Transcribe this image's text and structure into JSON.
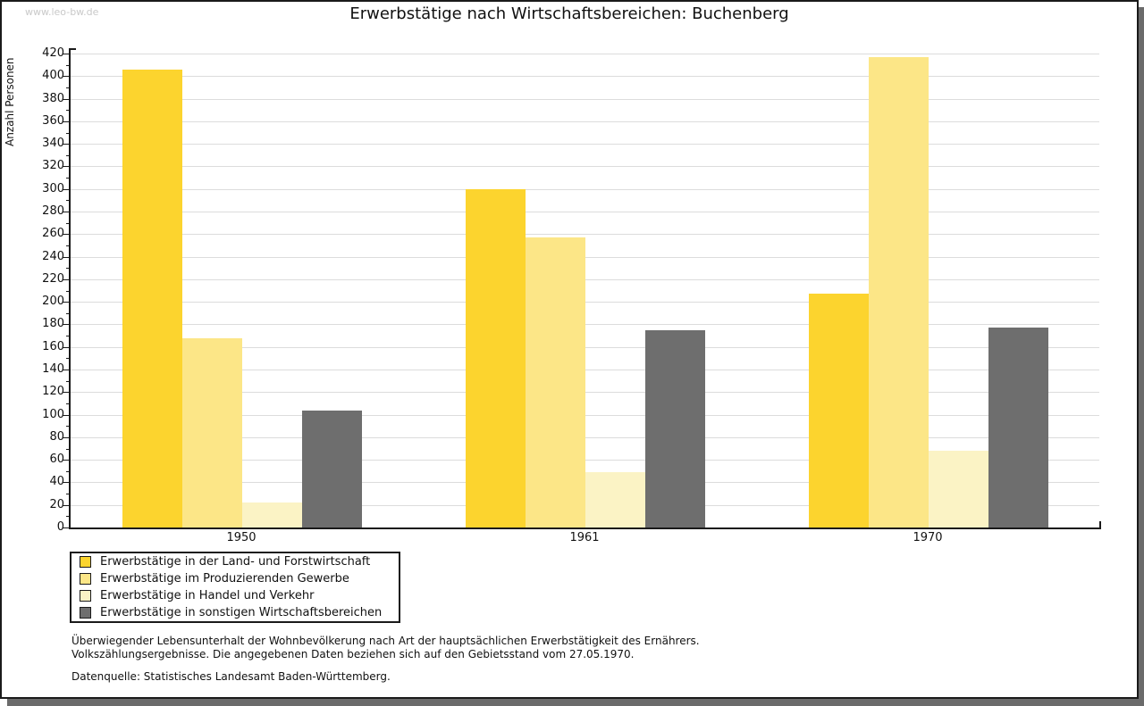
{
  "watermark": "www.leo-bw.de",
  "chart_data": {
    "type": "bar",
    "title": "Erwerbstätige nach Wirtschaftsbereichen: Buchenberg",
    "xlabel": "",
    "ylabel": "Anzahl Personen",
    "categories": [
      "1950",
      "1961",
      "1970"
    ],
    "series": [
      {
        "name": "Erwerbstätige in der Land- und Forstwirtschaft",
        "color": "#FCD42E",
        "values": [
          406,
          300,
          207
        ]
      },
      {
        "name": "Erwerbstätige im Produzierenden Gewerbe",
        "color": "#FCE687",
        "values": [
          168,
          257,
          417
        ]
      },
      {
        "name": "Erwerbstätige in Handel und Verkehr",
        "color": "#FBF3C5",
        "values": [
          22,
          49,
          68
        ]
      },
      {
        "name": "Erwerbstätige in sonstigen Wirtschaftsbereichen",
        "color": "#6E6E6E",
        "values": [
          104,
          175,
          177
        ]
      }
    ],
    "ylim": [
      0,
      420
    ],
    "ytick_step": 20,
    "ytick_minor_step": 10,
    "grid": true,
    "legend_position": "bottom-left",
    "gridline_color": "#dcdcdc"
  },
  "footnotes": {
    "line1": "Überwiegender Lebensunterhalt der Wohnbevölkerung nach Art der hauptsächlichen Erwerbstätigkeit des Ernährers.",
    "line2": "Volkszählungsergebnisse. Die angegebenen Daten beziehen sich auf den Gebietsstand vom 27.05.1970.",
    "source": "Datenquelle: Statistisches Landesamt Baden-Württemberg."
  }
}
